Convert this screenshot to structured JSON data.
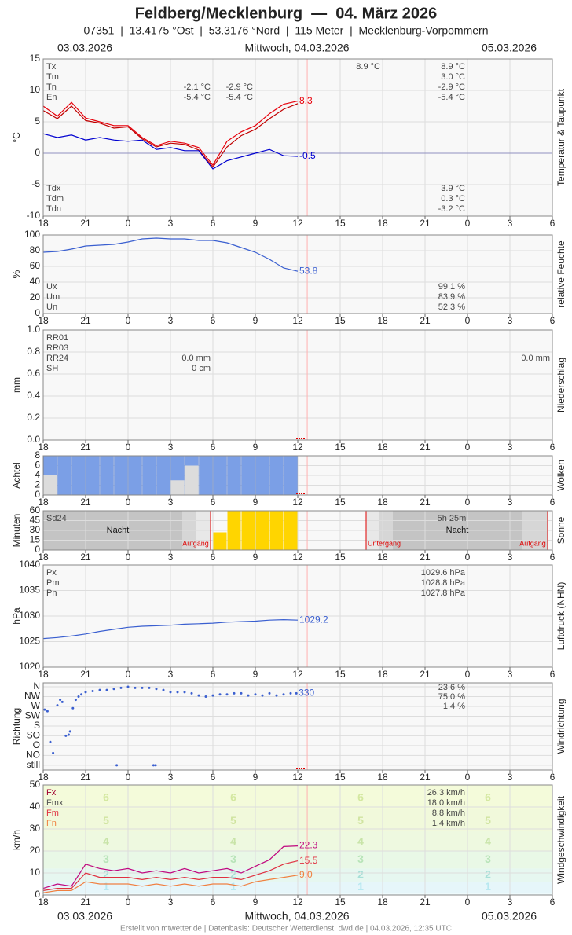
{
  "header": {
    "title": "Feldberg/Mecklenburg  —  04. März 2026",
    "subtitle": "07351  |  13.4175 °Ost  |  53.3176 °Nord  |  115 Meter  |  Mecklenburg-Vorpommern",
    "date_left": "03.03.2026",
    "date_center": "Mittwoch, 04.03.2026",
    "date_right": "05.03.2026"
  },
  "time_axis": {
    "xlim": [
      18,
      54
    ],
    "xticks": [
      18,
      21,
      {
        "value": 24,
        "label": "0"
      },
      {
        "value": 27,
        "label": "3"
      },
      {
        "value": 30,
        "label": "6"
      },
      {
        "value": 33,
        "label": "9"
      },
      {
        "value": 36,
        "label": "12"
      },
      {
        "value": 39,
        "label": "15"
      },
      {
        "value": 42,
        "label": "18"
      },
      {
        "value": 45,
        "label": "21"
      },
      {
        "value": 48,
        "label": "0"
      },
      {
        "value": 51,
        "label": "3"
      },
      {
        "value": 54,
        "label": "6"
      }
    ]
  },
  "chart_data": [
    {
      "type": "line",
      "y_label": "°C",
      "side_label": "Temperatur & Taupunkt",
      "ylim": [
        -10,
        15
      ],
      "yticks": [
        -10,
        -5,
        0,
        5,
        10,
        15
      ],
      "grid": true,
      "x": [
        18,
        19,
        20,
        21,
        22,
        23,
        24,
        25,
        26,
        27,
        28,
        29,
        30,
        31,
        32,
        33,
        34,
        35,
        36
      ],
      "series": [
        {
          "color": "#e8000b",
          "label_last": true,
          "values": [
            7.5,
            5.9,
            8.1,
            5.6,
            5.0,
            4.4,
            4.4,
            2.5,
            1.2,
            1.9,
            1.6,
            0.9,
            -1.9,
            1.9,
            3.4,
            4.4,
            6.3,
            7.8,
            8.3
          ]
        },
        {
          "color": "#c00000",
          "label_last": false,
          "values": [
            6.8,
            5.5,
            7.5,
            5.2,
            4.8,
            4.0,
            4.2,
            2.3,
            1.0,
            1.6,
            1.4,
            0.5,
            -2.2,
            1.0,
            2.8,
            3.8,
            5.5,
            7.0,
            7.9
          ]
        },
        {
          "color": "#0000d0",
          "label_last": true,
          "values": [
            3.1,
            2.5,
            2.9,
            2.1,
            2.5,
            2.1,
            1.9,
            2.1,
            0.6,
            0.9,
            0.4,
            0.4,
            -2.5,
            -1.2,
            -0.6,
            0,
            0.6,
            -0.4,
            -0.5
          ]
        }
      ],
      "stats": {
        "labels": [
          "Tx",
          "Tm",
          "Tn",
          "En"
        ],
        "values": [
          "8.9 °C",
          "3.0 °C",
          "-2.9 °C",
          "-5.4 °C"
        ]
      },
      "stats2": {
        "labels": [
          "Tdx",
          "Tdm",
          "Tdn"
        ],
        "values": [
          "3.9 °C",
          "0.3 °C",
          "-3.2 °C"
        ]
      },
      "notes": [
        "-2.1 °C",
        "-5.4 °C",
        "-2.9 °C",
        "-5.4 °C",
        "8.9 °C"
      ]
    },
    {
      "type": "line",
      "y_label": "%",
      "side_label": "relative Feuchte",
      "ylim": [
        0,
        100
      ],
      "yticks": [
        0,
        20,
        40,
        60,
        80,
        100
      ],
      "grid": true,
      "x": [
        18,
        19,
        20,
        21,
        22,
        23,
        24,
        25,
        26,
        27,
        28,
        29,
        30,
        31,
        32,
        33,
        34,
        35,
        36
      ],
      "series": [
        {
          "color": "#3a5fd0",
          "label_last": true,
          "values": [
            78,
            79,
            82,
            86,
            87,
            88,
            91,
            95,
            96,
            95,
            95,
            93,
            93,
            90,
            84,
            78,
            69,
            58,
            53.8
          ]
        }
      ],
      "stats": {
        "labels": [
          "Ux",
          "Um",
          "Un"
        ],
        "values": [
          "99.1 %",
          "83.9 %",
          "52.3 %"
        ]
      }
    },
    {
      "type": "bar",
      "y_label": "mm",
      "side_label": "Niederschlag",
      "ylim": [
        0,
        1
      ],
      "grid": true,
      "yticks": [
        {
          "value": 0,
          "label": "0.0"
        },
        {
          "value": 0.2,
          "label": "0.2"
        },
        {
          "value": 0.4,
          "label": "0.4"
        },
        {
          "value": 0.6,
          "label": "0.6"
        },
        {
          "value": 0.8,
          "label": "0.8"
        },
        {
          "value": 1,
          "label": "1.0"
        }
      ],
      "stats": {
        "labels": [
          "RR01",
          "RR03",
          "RR24",
          "SH"
        ],
        "values": []
      },
      "notes": [
        "0.0 mm",
        "0 cm",
        "0.0 mm"
      ]
    },
    {
      "type": "bar",
      "y_label": "Achtel",
      "side_label": "Wolken",
      "ylim": [
        0,
        8
      ],
      "yticks": [
        0,
        2,
        4,
        6,
        8
      ],
      "grid": true,
      "x": [
        18,
        19,
        20,
        21,
        22,
        23,
        24,
        25,
        26,
        27,
        28,
        29,
        30,
        31,
        32,
        33,
        34,
        35
      ],
      "series": [
        {
          "color": "#7b9fe6",
          "values": [
            8,
            8,
            8,
            8,
            8,
            8,
            8,
            8,
            8,
            8,
            8,
            8,
            8,
            8,
            8,
            8,
            8,
            8
          ]
        },
        {
          "color": "#dcdcdc",
          "values": [
            4,
            0,
            0,
            0,
            0,
            0,
            0,
            0,
            0,
            3,
            6,
            0,
            0,
            0,
            0,
            0,
            0,
            0
          ]
        }
      ]
    },
    {
      "type": "bar",
      "y_label": "Minuten",
      "side_label": "Sonne",
      "ylim": [
        0,
        60
      ],
      "yticks": [
        0,
        15,
        30,
        45,
        60
      ],
      "grid": true,
      "x": [
        18,
        19,
        20,
        21,
        22,
        23,
        24,
        25,
        26,
        27,
        28,
        29,
        30,
        31,
        32,
        33,
        34,
        35
      ],
      "series": [
        {
          "color": "#ffd500",
          "values": [
            0,
            0,
            0,
            0,
            0,
            0,
            0,
            0,
            0,
            0,
            0,
            0,
            27,
            60,
            60,
            60,
            60,
            60
          ]
        }
      ],
      "notes": [
        "Sd24",
        "Nacht",
        "Aufgang",
        "Untergang",
        "5h 25m",
        "Nacht",
        "Aufgang"
      ]
    },
    {
      "type": "line",
      "y_label": "hPa",
      "side_label": "Luftdruck (NHN)",
      "ylim": [
        1020,
        1040
      ],
      "yticks": [
        1020,
        1025,
        1030,
        1035,
        1040
      ],
      "grid": true,
      "x": [
        18,
        19,
        20,
        21,
        22,
        23,
        24,
        25,
        26,
        27,
        28,
        29,
        30,
        31,
        32,
        33,
        34,
        35,
        36
      ],
      "series": [
        {
          "color": "#3a5fd0",
          "label_last": true,
          "values": [
            1025.6,
            1025.8,
            1026.1,
            1026.5,
            1027.0,
            1027.4,
            1027.8,
            1028.0,
            1028.1,
            1028.2,
            1028.4,
            1028.5,
            1028.6,
            1028.8,
            1028.9,
            1029.0,
            1029.2,
            1029.3,
            1029.2
          ]
        }
      ],
      "stats": {
        "labels": [
          "Px",
          "Pm",
          "Pn"
        ],
        "values": [
          "1029.6 hPa",
          "1028.8 hPa",
          "1027.8 hPa"
        ]
      }
    },
    {
      "type": "scatter",
      "y_label": "Richtung",
      "side_label": "Windrichtung",
      "ylim": [
        -22,
        378
      ],
      "grid": true,
      "yticks": [
        {
          "value": 0,
          "label": "still"
        },
        {
          "value": 45,
          "label": "NO"
        },
        {
          "value": 90,
          "label": "O"
        },
        {
          "value": 135,
          "label": "SO"
        },
        {
          "value": 180,
          "label": "S"
        },
        {
          "value": 225,
          "label": "SW"
        },
        {
          "value": 270,
          "label": "W"
        },
        {
          "value": 315,
          "label": "NW"
        },
        {
          "value": 360,
          "label": "N"
        }
      ],
      "color": "#3a5fd0",
      "label_last": true,
      "x": [
        18.1,
        18.3,
        18.5,
        18.7,
        19.0,
        19.2,
        19.35,
        19.6,
        19.8,
        19.9,
        20.1,
        20.3,
        20.5,
        20.7,
        21.0,
        21.5,
        22,
        22.5,
        23,
        23.2,
        23.5,
        24,
        24.5,
        25,
        25.5,
        25.8,
        25.95,
        26,
        26.5,
        27,
        27.5,
        28,
        28.5,
        29,
        29.5,
        30,
        30.5,
        31,
        31.5,
        32,
        32.5,
        33,
        33.5,
        34,
        34.5,
        35,
        35.5,
        35.9
      ],
      "values": [
        255,
        248,
        107,
        56,
        275,
        300,
        290,
        135,
        140,
        155,
        262,
        300,
        315,
        325,
        335,
        340,
        345,
        345,
        350,
        0,
        355,
        360,
        355,
        355,
        355,
        0,
        0,
        350,
        345,
        335,
        335,
        335,
        330,
        320,
        315,
        320,
        325,
        325,
        330,
        330,
        320,
        325,
        320,
        330,
        320,
        325,
        330,
        330
      ],
      "notes": [
        "23.6 %",
        "75.0 %",
        "1.4 %"
      ]
    },
    {
      "type": "line",
      "y_label": "km/h",
      "side_label": "Windgeschwindigkeit",
      "ylim": [
        0,
        50
      ],
      "yticks": [
        0,
        10,
        20,
        30,
        40,
        50
      ],
      "grid": true,
      "beaufort": [
        1,
        2,
        3,
        4,
        5,
        6
      ],
      "x": [
        18,
        19,
        20,
        21,
        22,
        23,
        24,
        25,
        26,
        27,
        28,
        29,
        30,
        31,
        32,
        33,
        34,
        35,
        36
      ],
      "series": [
        {
          "color": "#c0087f",
          "label_last": true,
          "values": [
            3,
            5,
            4,
            14,
            12,
            11,
            12,
            10,
            11,
            10,
            12,
            10,
            11,
            12,
            10,
            13,
            16,
            22,
            22.3
          ]
        },
        {
          "color": "#e03040",
          "label_last": true,
          "values": [
            2,
            3,
            3,
            10,
            8,
            8,
            8,
            7,
            8,
            7,
            8,
            7,
            8,
            8,
            7,
            9,
            11,
            14,
            15.5
          ]
        },
        {
          "color": "#f08040",
          "label_last": true,
          "values": [
            1,
            2,
            2,
            6,
            5,
            5,
            5,
            4,
            5,
            4,
            5,
            4,
            5,
            5,
            4,
            6,
            7,
            8,
            9.0
          ],
          "value_labels": [
            null,
            null,
            null,
            null,
            null,
            null,
            null,
            null,
            null,
            null,
            null,
            null,
            null,
            null,
            null,
            null,
            null,
            null,
            "9.0"
          ]
        }
      ],
      "stats": {
        "labels": [
          "Fx",
          "Fmx",
          "Fm",
          "Fn"
        ],
        "values": [
          "26.3 km/h",
          "18.0 km/h",
          "8.8 km/h",
          "1.4 km/h"
        ],
        "label_colors": [
          "#a00030",
          "#555555",
          "#e03040",
          "#f08040"
        ]
      }
    }
  ],
  "footer": "Erstellt von mtwetter.de | Datenbasis: Deutscher Wetterdienst, dwd.de | 04.03.2026, 12:35 UTC"
}
